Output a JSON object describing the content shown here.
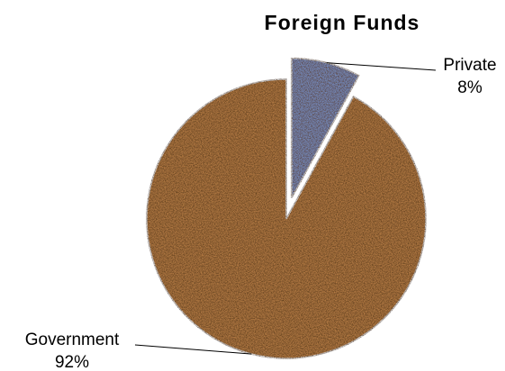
{
  "chart_data": {
    "type": "pie",
    "title": "Foreign Funds",
    "categories": [
      "Private",
      "Government"
    ],
    "values": [
      8,
      92
    ],
    "value_labels": [
      "8%",
      "92%"
    ],
    "colors": [
      "#7f9fd8",
      "#c98a4e"
    ]
  }
}
